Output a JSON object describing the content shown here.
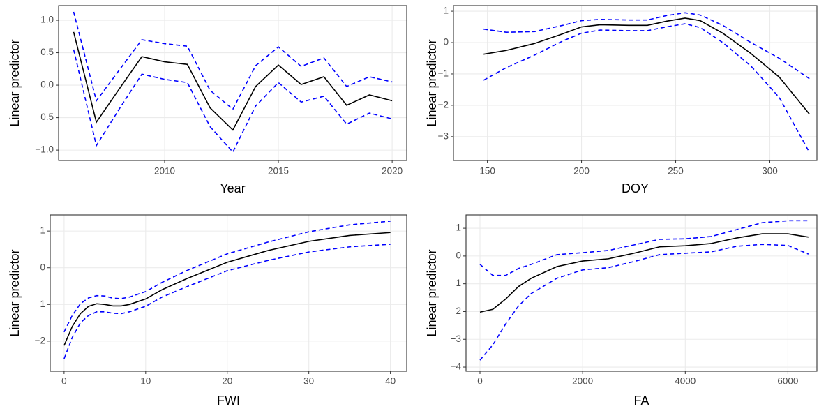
{
  "chart_data": [
    {
      "type": "line",
      "xlabel": "Year",
      "ylabel": "Linear predictor",
      "x": [
        2006,
        2007,
        2008,
        2009,
        2010,
        2011,
        2012,
        2013,
        2014,
        2015,
        2016,
        2017,
        2018,
        2019,
        2020
      ],
      "series": [
        {
          "color": "#000000",
          "dashed": false,
          "values": [
            0.82,
            -0.57,
            -0.06,
            0.44,
            0.36,
            0.32,
            -0.35,
            -0.69,
            -0.02,
            0.31,
            0.01,
            0.13,
            -0.31,
            -0.15,
            -0.24
          ]
        },
        {
          "color": "#0000ff",
          "dashed": true,
          "values": [
            1.13,
            -0.24,
            0.23,
            0.7,
            0.64,
            0.6,
            -0.08,
            -0.37,
            0.3,
            0.59,
            0.29,
            0.42,
            -0.02,
            0.13,
            0.05
          ]
        },
        {
          "color": "#0000ff",
          "dashed": true,
          "values": [
            0.55,
            -0.93,
            -0.37,
            0.17,
            0.09,
            0.04,
            -0.64,
            -1.03,
            -0.32,
            0.04,
            -0.26,
            -0.17,
            -0.6,
            -0.43,
            -0.52
          ]
        }
      ],
      "xlim": [
        2005.34,
        2020.64
      ],
      "ylim": [
        -1.16,
        1.226
      ],
      "xticks": [
        2010,
        2015,
        2020
      ],
      "yticks": [
        {
          "value": -1,
          "label": "−1.0"
        },
        {
          "value": -0.5,
          "label": "−0.5"
        },
        {
          "value": 0,
          "label": "0.0"
        },
        0.5,
        {
          "value": 1,
          "label": "1.0"
        }
      ],
      "grid": true
    },
    {
      "type": "line",
      "xlabel": "DOY",
      "ylabel": "Linear predictor",
      "x": [
        148,
        160,
        175,
        190,
        200,
        210,
        225,
        235,
        245,
        255,
        263,
        275,
        290,
        305,
        321
      ],
      "series": [
        {
          "color": "#000000",
          "dashed": false,
          "values": [
            -0.37,
            -0.25,
            -0.03,
            0.28,
            0.5,
            0.57,
            0.55,
            0.55,
            0.68,
            0.78,
            0.7,
            0.3,
            -0.35,
            -1.1,
            -2.28
          ]
        },
        {
          "color": "#0000ff",
          "dashed": true,
          "values": [
            0.43,
            0.33,
            0.35,
            0.55,
            0.7,
            0.74,
            0.72,
            0.72,
            0.86,
            0.95,
            0.88,
            0.55,
            0.0,
            -0.5,
            -1.15
          ]
        },
        {
          "color": "#0000ff",
          "dashed": true,
          "values": [
            -1.2,
            -0.8,
            -0.4,
            0.05,
            0.3,
            0.4,
            0.38,
            0.38,
            0.5,
            0.6,
            0.48,
            0.0,
            -0.75,
            -1.75,
            -3.5
          ]
        }
      ],
      "xlim": [
        132,
        325
      ],
      "ylim": [
        -3.76,
        1.18
      ],
      "xticks": [
        150,
        200,
        250,
        300
      ],
      "yticks": [
        {
          "value": -3,
          "label": "−3"
        },
        {
          "value": -2,
          "label": "−2"
        },
        {
          "value": -1,
          "label": "−1"
        },
        0,
        1
      ],
      "grid": true
    },
    {
      "type": "line",
      "xlabel": "FWI",
      "ylabel": "Linear predictor",
      "x": [
        0,
        1,
        2,
        3,
        4,
        5,
        6,
        7,
        8,
        10,
        12,
        15,
        20,
        25,
        30,
        35,
        40
      ],
      "series": [
        {
          "color": "#000000",
          "dashed": false,
          "values": [
            -2.12,
            -1.6,
            -1.25,
            -1.05,
            -0.98,
            -1.0,
            -1.04,
            -1.04,
            -1.0,
            -0.85,
            -0.6,
            -0.3,
            0.15,
            0.47,
            0.72,
            0.88,
            0.96
          ]
        },
        {
          "color": "#0000ff",
          "dashed": true,
          "values": [
            -1.75,
            -1.3,
            -0.98,
            -0.82,
            -0.76,
            -0.77,
            -0.83,
            -0.84,
            -0.8,
            -0.65,
            -0.4,
            -0.08,
            0.38,
            0.7,
            0.98,
            1.17,
            1.27
          ]
        },
        {
          "color": "#0000ff",
          "dashed": true,
          "values": [
            -2.48,
            -1.9,
            -1.5,
            -1.3,
            -1.2,
            -1.2,
            -1.24,
            -1.25,
            -1.2,
            -1.05,
            -0.8,
            -0.52,
            -0.08,
            0.2,
            0.43,
            0.57,
            0.64
          ]
        }
      ],
      "xlim": [
        -1.7,
        42
      ],
      "ylim": [
        -2.82,
        1.44
      ],
      "xticks": [
        0,
        10,
        20,
        30,
        40
      ],
      "yticks": [
        {
          "value": -2,
          "label": "−2"
        },
        {
          "value": -1,
          "label": "−1"
        },
        0,
        1
      ],
      "grid": true
    },
    {
      "type": "line",
      "xlabel": "FA",
      "ylabel": "Linear predictor",
      "x": [
        0,
        250,
        500,
        750,
        1000,
        1500,
        2000,
        2500,
        3000,
        3500,
        4000,
        4500,
        5000,
        5500,
        6000,
        6400
      ],
      "series": [
        {
          "color": "#000000",
          "dashed": false,
          "values": [
            -2.02,
            -1.92,
            -1.55,
            -1.1,
            -0.8,
            -0.38,
            -0.18,
            -0.1,
            0.1,
            0.33,
            0.37,
            0.45,
            0.65,
            0.8,
            0.8,
            0.68
          ]
        },
        {
          "color": "#0000ff",
          "dashed": true,
          "values": [
            -0.3,
            -0.7,
            -0.7,
            -0.45,
            -0.3,
            0.05,
            0.12,
            0.2,
            0.4,
            0.6,
            0.62,
            0.7,
            0.95,
            1.2,
            1.27,
            1.27
          ]
        },
        {
          "color": "#0000ff",
          "dashed": true,
          "values": [
            -3.75,
            -3.2,
            -2.45,
            -1.8,
            -1.35,
            -0.8,
            -0.5,
            -0.42,
            -0.2,
            0.05,
            0.1,
            0.15,
            0.35,
            0.42,
            0.38,
            0.07
          ]
        }
      ],
      "xlim": [
        -272,
        6565
      ],
      "ylim": [
        -4.15,
        1.48
      ],
      "xticks": [
        0,
        2000,
        4000,
        6000
      ],
      "yticks": [
        {
          "value": -4,
          "label": "−4"
        },
        {
          "value": -3,
          "label": "−3"
        },
        {
          "value": -2,
          "label": "−2"
        },
        {
          "value": -1,
          "label": "−1"
        },
        0,
        1
      ],
      "grid": true
    }
  ]
}
